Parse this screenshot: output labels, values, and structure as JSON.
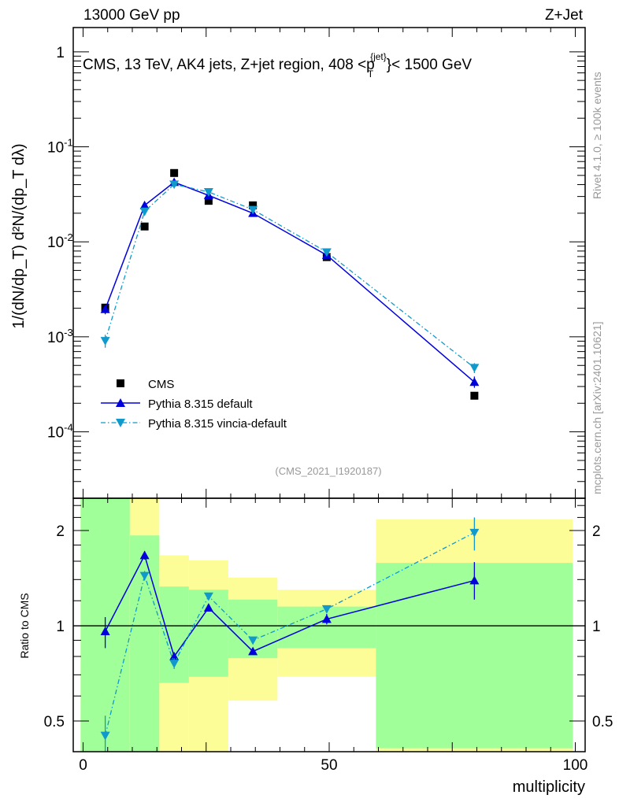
{
  "header": {
    "left": "13000 GeV pp",
    "right": "Z+Jet"
  },
  "side_labels": {
    "rivet": "Rivet 4.1.0, ≥ 100k events",
    "mcplots": "mcplots.cern.ch [arXiv:2401.10621]"
  },
  "analysis_id": "(CMS_2021_I1920187)",
  "colors": {
    "cms": "#000000",
    "default": "#0000dd",
    "vincia": "#1199cc",
    "band_green": "#a0ff98",
    "band_yellow": "#fdfd98"
  },
  "chart_data": [
    {
      "type": "scatter",
      "title": "CMS, 13 TeV, AK4 jets, Z+jet region, 408 <p_T^{jet}< 1500 GeV",
      "title_main": "CMS, 13 TeV, AK4 jets, Z+jet region, 408 <p",
      "title_sub": "T",
      "title_sup": "{jet}",
      "title_end": "}< 1500 GeV",
      "ylabel": "1/(dN/dp_T) d²N/(dp_T dλ)",
      "yscale": "log",
      "ylim": [
        2e-05,
        1.8
      ],
      "xlim": [
        -2,
        102
      ],
      "ytick_labels": [
        {
          "value": 1,
          "base": "1",
          "exp": ""
        },
        {
          "value": 0.1,
          "base": "10",
          "exp": "-1"
        },
        {
          "value": 0.01,
          "base": "10",
          "exp": "-2"
        },
        {
          "value": 0.001,
          "base": "10",
          "exp": "-3"
        },
        {
          "value": 0.0001,
          "base": "10",
          "exp": "-4"
        }
      ],
      "x": [
        4.5,
        12.5,
        18.5,
        25.5,
        34.5,
        49.5,
        79.5
      ],
      "series": [
        {
          "name": "CMS",
          "marker": "square",
          "values": [
            0.00203,
            0.0145,
            0.053,
            0.027,
            0.0242,
            0.0069,
            0.00024
          ]
        },
        {
          "name": "Pythia 8.315 default",
          "marker": "triangle-up",
          "line": "solid",
          "values": [
            0.00195,
            0.0242,
            0.0424,
            0.0308,
            0.02,
            0.00725,
            0.000334
          ]
        },
        {
          "name": "Pythia 8.315 vincia-default",
          "marker": "triangle-down",
          "line": "dashdot",
          "values": [
            0.00091,
            0.0209,
            0.0403,
            0.0335,
            0.0218,
            0.0078,
            0.000473
          ]
        }
      ],
      "legend": [
        "CMS",
        "Pythia 8.315 default",
        "Pythia 8.315 vincia-default"
      ],
      "legend_placement": "bottom-left"
    },
    {
      "type": "scatter",
      "ylabel": "Ratio to CMS",
      "xlabel": "multiplicity",
      "yscale": "log",
      "ylim": [
        0.4,
        2.53
      ],
      "ytick_labels": [
        {
          "value": 2,
          "label": "2"
        },
        {
          "value": 1,
          "label": "1"
        },
        {
          "value": 0.5,
          "label": "0.5"
        }
      ],
      "xtick_labels": [
        {
          "value": 0,
          "label": "0"
        },
        {
          "value": 50,
          "label": "50"
        },
        {
          "value": 100,
          "label": "100"
        }
      ],
      "bin_edges": [
        -0.5,
        9.5,
        15.5,
        21.5,
        29.5,
        39.5,
        59.5,
        99.5
      ],
      "band_green": [
        [
          0.3,
          3.0
        ],
        [
          0.3,
          1.93
        ],
        [
          0.66,
          1.33
        ],
        [
          0.69,
          1.3
        ],
        [
          0.79,
          1.21
        ],
        [
          0.85,
          1.15
        ],
        [
          0.41,
          1.58
        ]
      ],
      "band_yellow": [
        [
          0.3,
          3.0
        ],
        [
          0.3,
          3.0
        ],
        [
          0.3,
          1.67
        ],
        [
          0.3,
          1.61
        ],
        [
          0.58,
          1.42
        ],
        [
          0.69,
          1.3
        ],
        [
          0.39,
          2.17
        ]
      ],
      "x": [
        4.5,
        12.5,
        18.5,
        25.5,
        34.5,
        49.5,
        79.5
      ],
      "series": [
        {
          "name": "Pythia 8.315 default",
          "values": [
            0.96,
            1.67,
            0.8,
            1.14,
            0.83,
            1.05,
            1.39
          ],
          "err_lo": [
            0.85,
            1.62,
            0.78,
            1.11,
            0.81,
            1.01,
            1.21
          ],
          "err_hi": [
            1.065,
            1.72,
            0.82,
            1.17,
            0.85,
            1.09,
            1.59
          ]
        },
        {
          "name": "Pythia 8.315 vincia-default",
          "values": [
            0.45,
            1.44,
            0.76,
            1.24,
            0.9,
            1.13,
            1.97
          ],
          "err_lo": [
            0.38,
            1.39,
            0.73,
            1.21,
            0.88,
            1.1,
            1.73
          ],
          "err_hi": [
            0.52,
            1.49,
            0.79,
            1.27,
            0.92,
            1.16,
            2.2
          ]
        }
      ]
    }
  ]
}
